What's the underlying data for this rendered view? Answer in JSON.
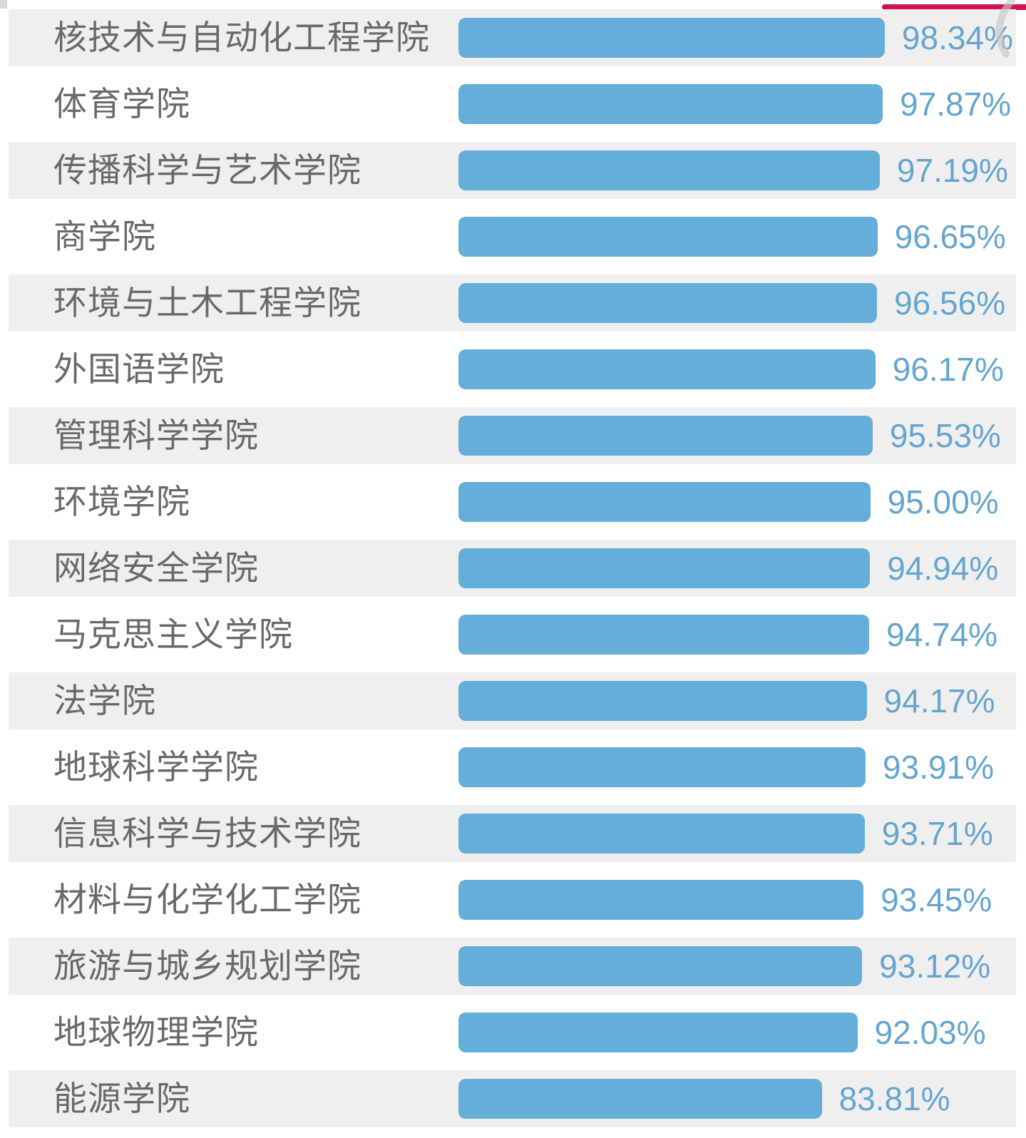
{
  "chart_data": {
    "type": "bar",
    "orientation": "horizontal",
    "title": "",
    "xlabel": "",
    "ylabel": "",
    "xlim": [
      0,
      100
    ],
    "grid": false,
    "legend": false,
    "categories": [
      "核技术与自动化工程学院",
      "体育学院",
      "传播科学与艺术学院",
      "商学院",
      "环境与土木工程学院",
      "外国语学院",
      "管理科学学院",
      "环境学院",
      "网络安全学院",
      "马克思主义学院",
      "法学院",
      "地球科学学院",
      "信息科学与技术学院",
      "材料与化学化工学院",
      "旅游与城乡规划学院",
      "地球物理学院",
      "能源学院"
    ],
    "values": [
      98.34,
      97.87,
      97.19,
      96.65,
      96.56,
      96.17,
      95.53,
      95.0,
      94.94,
      94.74,
      94.17,
      93.91,
      93.71,
      93.45,
      93.12,
      92.03,
      83.81
    ],
    "value_labels": [
      "98.34%",
      "97.87%",
      "97.19%",
      "96.65%",
      "96.56%",
      "96.17%",
      "95.53%",
      "95.00%",
      "94.94%",
      "94.74%",
      "94.17%",
      "93.91%",
      "93.71%",
      "93.45%",
      "93.12%",
      "92.03%",
      "83.81%"
    ],
    "bar_color": "#64aed9",
    "value_label_color": "#64a5d1",
    "category_label_color": "#696969",
    "stripe_color": "#f0eff0"
  },
  "annotations": {
    "red_line_color": "#d3114e",
    "scroll_indicator_color": "#c6c6c6"
  }
}
